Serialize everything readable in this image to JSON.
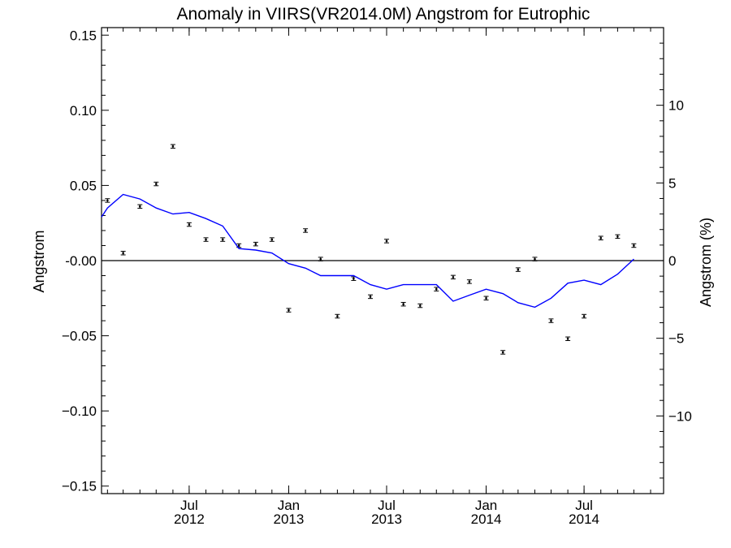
{
  "chart_data": {
    "type": "scatter",
    "title": "Anomaly in VIIRS(VR2014.0M) Angstrom for Eutrophic",
    "ylabel_left": "Angstrom",
    "ylabel_right": "Angstrom (%)",
    "xlabel": "",
    "ylim_left": [
      -0.155,
      0.155
    ],
    "ylim_right": [
      -15,
      15
    ],
    "y_ticks_left": [
      {
        "value": 0.15,
        "label": "0.15"
      },
      {
        "value": 0.1,
        "label": "0.10"
      },
      {
        "value": 0.05,
        "label": "0.05"
      },
      {
        "value": 0.0,
        "label": "-0.00"
      },
      {
        "value": -0.05,
        "label": "−0.05"
      },
      {
        "value": -0.1,
        "label": "−0.10"
      },
      {
        "value": -0.15,
        "label": "−0.15"
      }
    ],
    "y_ticks_right": [
      {
        "value": 10,
        "label": "10"
      },
      {
        "value": 5,
        "label": "5"
      },
      {
        "value": 0,
        "label": "0"
      },
      {
        "value": -5,
        "label": "−5"
      },
      {
        "value": -10,
        "label": "−10"
      }
    ],
    "x_range": [
      "2012-01-21",
      "2014-11-25"
    ],
    "x_ticks": [
      {
        "date": "2012-07-01",
        "month": "Jul",
        "year": "2012"
      },
      {
        "date": "2013-01-01",
        "month": "Jan",
        "year": "2013"
      },
      {
        "date": "2013-07-01",
        "month": "Jul",
        "year": "2013"
      },
      {
        "date": "2014-01-01",
        "month": "Jan",
        "year": "2014"
      },
      {
        "date": "2014-07-01",
        "month": "Jul",
        "year": "2014"
      }
    ],
    "zero_line": 0.0,
    "series": [
      {
        "kind": "points_with_error_bars",
        "color": "#000000",
        "error": 0.0012,
        "points": [
          {
            "x": "2012-02-01",
            "y": 0.04
          },
          {
            "x": "2012-03-01",
            "y": 0.005
          },
          {
            "x": "2012-04-01",
            "y": 0.036
          },
          {
            "x": "2012-05-01",
            "y": 0.051
          },
          {
            "x": "2012-06-01",
            "y": 0.076
          },
          {
            "x": "2012-07-01",
            "y": 0.024
          },
          {
            "x": "2012-08-01",
            "y": 0.014
          },
          {
            "x": "2012-09-01",
            "y": 0.014
          },
          {
            "x": "2012-10-01",
            "y": 0.01
          },
          {
            "x": "2012-11-01",
            "y": 0.011
          },
          {
            "x": "2012-12-01",
            "y": 0.014
          },
          {
            "x": "2013-01-01",
            "y": -0.033
          },
          {
            "x": "2013-02-01",
            "y": 0.02
          },
          {
            "x": "2013-03-01",
            "y": 0.001
          },
          {
            "x": "2013-04-01",
            "y": -0.037
          },
          {
            "x": "2013-05-01",
            "y": -0.012
          },
          {
            "x": "2013-06-01",
            "y": -0.024
          },
          {
            "x": "2013-07-01",
            "y": 0.013
          },
          {
            "x": "2013-08-01",
            "y": -0.029
          },
          {
            "x": "2013-09-01",
            "y": -0.03
          },
          {
            "x": "2013-10-01",
            "y": -0.019
          },
          {
            "x": "2013-11-01",
            "y": -0.011
          },
          {
            "x": "2013-12-01",
            "y": -0.014
          },
          {
            "x": "2014-01-01",
            "y": -0.025
          },
          {
            "x": "2014-02-01",
            "y": -0.061
          },
          {
            "x": "2014-03-01",
            "y": -0.006
          },
          {
            "x": "2014-04-01",
            "y": 0.001
          },
          {
            "x": "2014-05-01",
            "y": -0.04
          },
          {
            "x": "2014-06-01",
            "y": -0.052
          },
          {
            "x": "2014-07-01",
            "y": -0.037
          },
          {
            "x": "2014-08-01",
            "y": 0.015
          },
          {
            "x": "2014-09-01",
            "y": 0.016
          },
          {
            "x": "2014-10-01",
            "y": 0.01
          }
        ]
      },
      {
        "kind": "line",
        "color": "#0000ff",
        "points": [
          {
            "x": "2012-01-21",
            "y": 0.029
          },
          {
            "x": "2012-02-01",
            "y": 0.035
          },
          {
            "x": "2012-03-01",
            "y": 0.044
          },
          {
            "x": "2012-04-01",
            "y": 0.041
          },
          {
            "x": "2012-05-01",
            "y": 0.035
          },
          {
            "x": "2012-06-01",
            "y": 0.031
          },
          {
            "x": "2012-07-01",
            "y": 0.032
          },
          {
            "x": "2012-08-01",
            "y": 0.028
          },
          {
            "x": "2012-09-01",
            "y": 0.023
          },
          {
            "x": "2012-10-01",
            "y": 0.008
          },
          {
            "x": "2012-11-01",
            "y": 0.007
          },
          {
            "x": "2012-12-01",
            "y": 0.005
          },
          {
            "x": "2013-01-01",
            "y": -0.002
          },
          {
            "x": "2013-02-01",
            "y": -0.005
          },
          {
            "x": "2013-03-01",
            "y": -0.01
          },
          {
            "x": "2013-04-01",
            "y": -0.01
          },
          {
            "x": "2013-05-01",
            "y": -0.01
          },
          {
            "x": "2013-06-01",
            "y": -0.016
          },
          {
            "x": "2013-07-01",
            "y": -0.019
          },
          {
            "x": "2013-08-01",
            "y": -0.016
          },
          {
            "x": "2013-09-01",
            "y": -0.016
          },
          {
            "x": "2013-10-01",
            "y": -0.016
          },
          {
            "x": "2013-11-01",
            "y": -0.027
          },
          {
            "x": "2013-12-01",
            "y": -0.023
          },
          {
            "x": "2014-01-01",
            "y": -0.019
          },
          {
            "x": "2014-02-01",
            "y": -0.022
          },
          {
            "x": "2014-03-01",
            "y": -0.028
          },
          {
            "x": "2014-04-01",
            "y": -0.031
          },
          {
            "x": "2014-05-01",
            "y": -0.025
          },
          {
            "x": "2014-06-01",
            "y": -0.015
          },
          {
            "x": "2014-07-01",
            "y": -0.013
          },
          {
            "x": "2014-08-01",
            "y": -0.016
          },
          {
            "x": "2014-09-01",
            "y": -0.009
          },
          {
            "x": "2014-10-01",
            "y": 0.001
          }
        ]
      }
    ],
    "grid": false
  }
}
